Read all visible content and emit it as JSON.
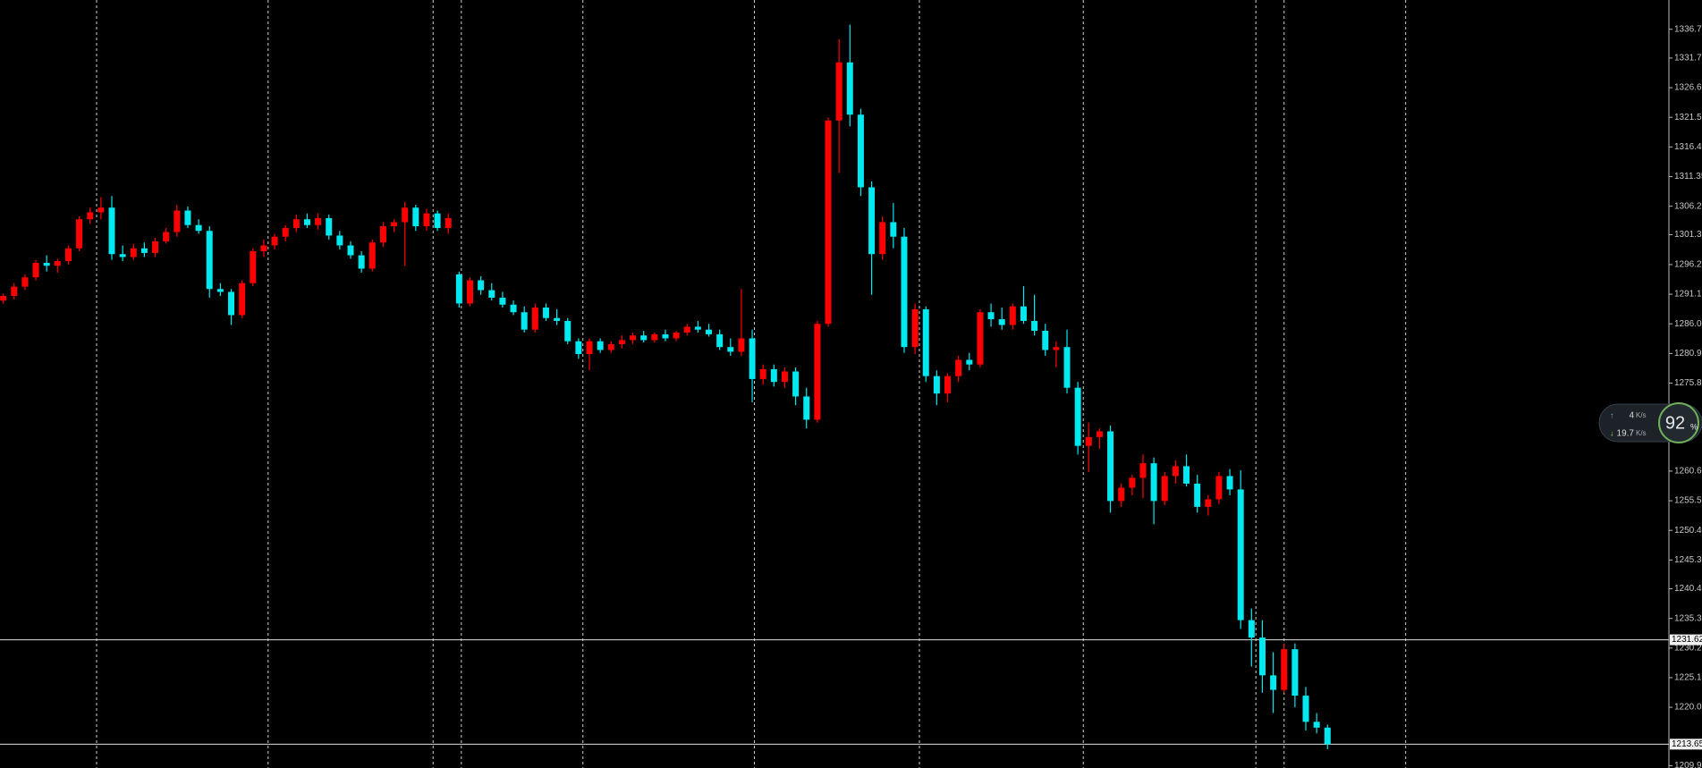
{
  "chart_data": {
    "type": "candlestick",
    "up_color": "#ff0000",
    "down_color": "#00e8f0",
    "ylim": [
      1209.55,
      1341.74
    ],
    "yticks": [
      {
        "value": 1336.7,
        "label": "1336.70"
      },
      {
        "value": 1331.75,
        "label": "1331.75"
      },
      {
        "value": 1326.65,
        "label": "1326.65"
      },
      {
        "value": 1321.55,
        "label": "1321.55"
      },
      {
        "value": 1316.45,
        "label": "1316.45"
      },
      {
        "value": 1311.35,
        "label": "1311.35"
      },
      {
        "value": 1306.25,
        "label": "1306.25"
      },
      {
        "value": 1301.35,
        "label": "1301.35"
      },
      {
        "value": 1296.2,
        "label": "1296.20"
      },
      {
        "value": 1291.1,
        "label": "1291.10"
      },
      {
        "value": 1286,
        "label": "1286.00"
      },
      {
        "value": 1280.9,
        "label": "1280.90"
      },
      {
        "value": 1275.8,
        "label": "1275.80"
      },
      {
        "value": 1260.65,
        "label": "1260.65"
      },
      {
        "value": 1255.55,
        "label": "1255.55"
      },
      {
        "value": 1250.45,
        "label": "1250.45"
      },
      {
        "value": 1245.35,
        "label": "1245.35"
      },
      {
        "value": 1240.4,
        "label": "1240.40"
      },
      {
        "value": 1235.3,
        "label": "1235.30"
      },
      {
        "value": 1230.2,
        "label": "1230.20"
      },
      {
        "value": 1225.1,
        "label": "1225.10"
      },
      {
        "value": 1220,
        "label": "1220.00"
      },
      {
        "value": 1209.95,
        "label": "1209.95"
      }
    ],
    "price_lines": [
      {
        "value": 1231.62,
        "label": "1231.62"
      },
      {
        "value": 1213.65,
        "label": "1213.65"
      }
    ],
    "candles": [
      [
        1290.0,
        1291.2,
        1289.5,
        1290.8
      ],
      [
        1290.8,
        1293.0,
        1290.2,
        1292.4
      ],
      [
        1292.4,
        1294.5,
        1291.8,
        1294.0
      ],
      [
        1294.0,
        1297.0,
        1293.5,
        1296.5
      ],
      [
        1296.5,
        1297.8,
        1295.0,
        1296.0
      ],
      [
        1296.0,
        1297.2,
        1294.8,
        1296.8
      ],
      [
        1296.8,
        1299.5,
        1296.2,
        1299.0
      ],
      [
        1299.0,
        1304.5,
        1298.5,
        1304.0
      ],
      [
        1304.0,
        1306.0,
        1303.2,
        1305.2
      ],
      [
        1305.2,
        1307.8,
        1304.0,
        1306.0
      ],
      [
        1306.0,
        1308.0,
        1297.0,
        1298.0
      ],
      [
        1298.0,
        1299.5,
        1296.8,
        1297.5
      ],
      [
        1297.5,
        1299.8,
        1297.0,
        1299.0
      ],
      [
        1299.0,
        1300.0,
        1297.5,
        1298.2
      ],
      [
        1298.2,
        1300.8,
        1297.5,
        1300.2
      ],
      [
        1300.2,
        1302.5,
        1299.8,
        1301.8
      ],
      [
        1301.8,
        1306.5,
        1301.0,
        1305.5
      ],
      [
        1305.5,
        1306.2,
        1302.5,
        1303.0
      ],
      [
        1303.0,
        1304.0,
        1301.5,
        1302.0
      ],
      [
        1302.0,
        1302.8,
        1290.5,
        1292.0
      ],
      [
        1292.0,
        1293.0,
        1290.8,
        1291.5
      ],
      [
        1291.5,
        1292.0,
        1285.8,
        1287.5
      ],
      [
        1287.5,
        1293.5,
        1287.0,
        1293.0
      ],
      [
        1293.0,
        1299.0,
        1292.5,
        1298.5
      ],
      [
        1298.5,
        1300.5,
        1297.5,
        1299.5
      ],
      [
        1299.5,
        1301.5,
        1298.8,
        1301.0
      ],
      [
        1301.0,
        1303.0,
        1300.2,
        1302.5
      ],
      [
        1302.5,
        1304.8,
        1301.8,
        1304.0
      ],
      [
        1304.0,
        1305.0,
        1302.5,
        1303.0
      ],
      [
        1303.0,
        1305.0,
        1302.2,
        1304.2
      ],
      [
        1304.2,
        1304.8,
        1300.5,
        1301.2
      ],
      [
        1301.2,
        1302.0,
        1298.8,
        1299.5
      ],
      [
        1299.5,
        1300.2,
        1297.2,
        1297.8
      ],
      [
        1297.8,
        1298.5,
        1294.8,
        1295.5
      ],
      [
        1295.5,
        1300.5,
        1295.0,
        1300.0
      ],
      [
        1300.0,
        1303.5,
        1299.2,
        1302.8
      ],
      [
        1302.8,
        1304.0,
        1301.8,
        1303.5
      ],
      [
        1303.5,
        1307.0,
        1296.0,
        1306.0
      ],
      [
        1306.0,
        1306.5,
        1302.0,
        1302.8
      ],
      [
        1302.8,
        1305.8,
        1302.0,
        1305.0
      ],
      [
        1305.0,
        1305.5,
        1302.0,
        1302.5
      ],
      [
        1302.5,
        1305.0,
        1301.5,
        1304.2
      ],
      [
        1294.5,
        1295.0,
        1288.8,
        1289.5
      ],
      [
        1289.5,
        1294.0,
        1289.0,
        1293.5
      ],
      [
        1293.5,
        1294.2,
        1291.0,
        1291.8
      ],
      [
        1291.8,
        1293.0,
        1290.0,
        1290.5
      ],
      [
        1290.5,
        1291.5,
        1288.8,
        1289.3
      ],
      [
        1289.3,
        1290.0,
        1287.5,
        1288.0
      ],
      [
        1288.0,
        1289.0,
        1284.5,
        1285.0
      ],
      [
        1285.0,
        1289.5,
        1284.5,
        1288.8
      ],
      [
        1288.8,
        1289.5,
        1286.5,
        1287.0
      ],
      [
        1287.0,
        1288.5,
        1285.8,
        1286.5
      ],
      [
        1286.5,
        1287.0,
        1282.5,
        1283.0
      ],
      [
        1283.0,
        1283.5,
        1280.0,
        1280.8
      ],
      [
        1280.8,
        1283.5,
        1278.0,
        1283.0
      ],
      [
        1283.0,
        1283.5,
        1281.0,
        1281.5
      ],
      [
        1281.5,
        1283.0,
        1281.0,
        1282.5
      ],
      [
        1282.5,
        1284.0,
        1281.8,
        1283.2
      ],
      [
        1283.2,
        1284.5,
        1282.5,
        1284.0
      ],
      [
        1284.0,
        1284.8,
        1282.8,
        1283.2
      ],
      [
        1283.2,
        1284.5,
        1282.8,
        1284.2
      ],
      [
        1284.2,
        1285.0,
        1283.0,
        1283.5
      ],
      [
        1283.5,
        1284.8,
        1283.0,
        1284.5
      ],
      [
        1284.5,
        1286.0,
        1284.0,
        1285.5
      ],
      [
        1285.5,
        1286.5,
        1284.5,
        1285.0
      ],
      [
        1285.0,
        1286.0,
        1283.8,
        1284.2
      ],
      [
        1284.2,
        1285.0,
        1281.5,
        1282.0
      ],
      [
        1282.0,
        1283.5,
        1280.5,
        1281.2
      ],
      [
        1281.2,
        1292.0,
        1280.5,
        1283.5
      ],
      [
        1283.5,
        1285.0,
        1272.5,
        1276.5
      ],
      [
        1276.5,
        1279.0,
        1275.5,
        1278.2
      ],
      [
        1278.2,
        1279.0,
        1275.2,
        1276.0
      ],
      [
        1276.0,
        1278.5,
        1275.0,
        1277.8
      ],
      [
        1277.8,
        1278.5,
        1272.0,
        1273.5
      ],
      [
        1273.5,
        1275.0,
        1268.0,
        1269.5
      ],
      [
        1269.5,
        1286.5,
        1269.0,
        1286.0
      ],
      [
        1286.0,
        1321.5,
        1285.5,
        1321.0
      ],
      [
        1321.0,
        1335.0,
        1312.0,
        1331.0
      ],
      [
        1331.0,
        1337.5,
        1320.0,
        1322.0
      ],
      [
        1322.0,
        1323.0,
        1308.0,
        1309.5
      ],
      [
        1309.5,
        1310.5,
        1291.0,
        1298.0
      ],
      [
        1298.0,
        1304.5,
        1297.0,
        1303.5
      ],
      [
        1303.5,
        1306.8,
        1299.0,
        1301.0
      ],
      [
        1301.0,
        1302.5,
        1281.0,
        1282.0
      ],
      [
        1282.0,
        1289.5,
        1280.8,
        1288.5
      ],
      [
        1288.5,
        1289.0,
        1276.0,
        1277.0
      ],
      [
        1277.0,
        1278.0,
        1272.0,
        1274.0
      ],
      [
        1274.0,
        1277.5,
        1272.5,
        1277.0
      ],
      [
        1277.0,
        1280.5,
        1276.0,
        1279.8
      ],
      [
        1279.8,
        1281.0,
        1278.0,
        1279.0
      ],
      [
        1279.0,
        1288.5,
        1278.5,
        1288.0
      ],
      [
        1288.0,
        1289.5,
        1285.5,
        1286.8
      ],
      [
        1286.8,
        1288.8,
        1285.0,
        1285.8
      ],
      [
        1285.8,
        1289.5,
        1285.0,
        1289.0
      ],
      [
        1289.0,
        1292.5,
        1286.0,
        1286.5
      ],
      [
        1286.5,
        1291.0,
        1284.0,
        1284.8
      ],
      [
        1284.8,
        1286.0,
        1280.5,
        1281.5
      ],
      [
        1281.5,
        1283.0,
        1278.5,
        1282.0
      ],
      [
        1282.0,
        1285.0,
        1274.0,
        1275.0
      ],
      [
        1275.0,
        1276.0,
        1263.5,
        1265.0
      ],
      [
        1265.0,
        1269.0,
        1260.5,
        1266.5
      ],
      [
        1266.5,
        1268.0,
        1264.5,
        1267.5
      ],
      [
        1267.5,
        1268.5,
        1253.5,
        1255.5
      ],
      [
        1255.5,
        1258.5,
        1254.5,
        1257.8
      ],
      [
        1257.8,
        1260.0,
        1256.5,
        1259.5
      ],
      [
        1259.5,
        1263.5,
        1256.0,
        1262.0
      ],
      [
        1262.0,
        1263.0,
        1251.5,
        1255.5
      ],
      [
        1255.5,
        1260.5,
        1254.8,
        1259.8
      ],
      [
        1259.8,
        1262.5,
        1258.5,
        1261.5
      ],
      [
        1261.5,
        1263.5,
        1258.0,
        1258.5
      ],
      [
        1258.5,
        1260.0,
        1253.5,
        1254.5
      ],
      [
        1254.5,
        1256.5,
        1253.0,
        1255.8
      ],
      [
        1255.8,
        1260.5,
        1255.0,
        1259.8
      ],
      [
        1259.8,
        1261.0,
        1256.5,
        1257.5
      ],
      [
        1257.5,
        1260.8,
        1233.5,
        1235.0
      ],
      [
        1235.0,
        1237.0,
        1227.0,
        1232.0
      ],
      [
        1232.0,
        1235.0,
        1222.5,
        1225.5
      ],
      [
        1225.5,
        1229.5,
        1219.0,
        1223.0
      ],
      [
        1223.0,
        1231.0,
        1222.5,
        1230.0
      ],
      [
        1230.0,
        1231.0,
        1220.0,
        1222.0
      ],
      [
        1222.0,
        1223.5,
        1216.0,
        1217.5
      ],
      [
        1217.5,
        1219.0,
        1215.5,
        1216.5
      ],
      [
        1216.5,
        1217.0,
        1212.8,
        1213.65
      ]
    ]
  },
  "overlay": {
    "upload": "4",
    "download": "19.7",
    "unit": "K/s",
    "percent": "92",
    "percent_sign": "%"
  }
}
